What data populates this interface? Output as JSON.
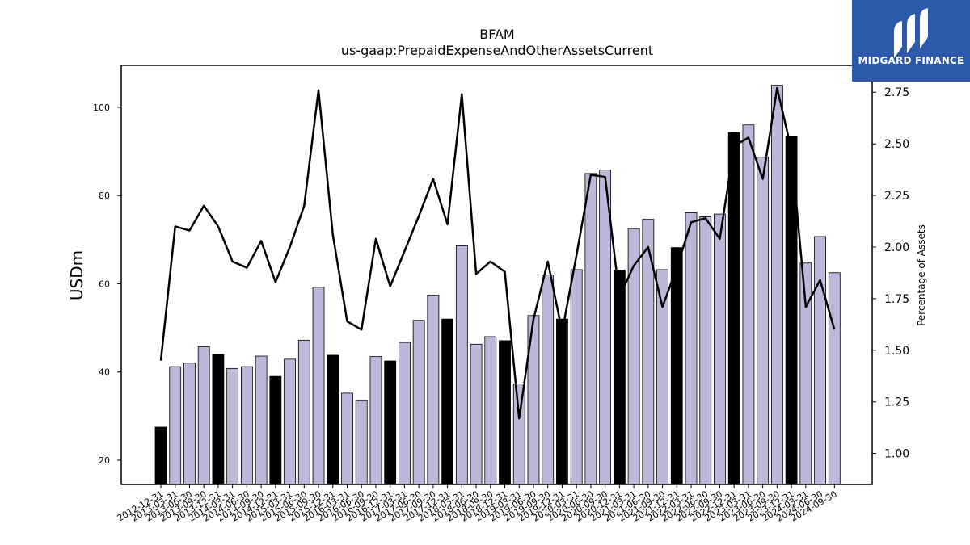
{
  "chart_data": {
    "type": "bar",
    "title": "BFAM",
    "subtitle": "us-gaap:PrepaidExpenseAndOtherAssetsCurrent",
    "ylabel": "USDm",
    "y2label": "Percentage of Assets",
    "ylim": [
      14.5,
      109.5
    ],
    "y2lim": [
      0.85,
      2.88
    ],
    "yticks": [
      20,
      40,
      60,
      80,
      100
    ],
    "y2ticks": [
      "1.00",
      "1.25",
      "1.50",
      "1.75",
      "2.00",
      "2.25",
      "2.50",
      "2.75"
    ],
    "colors": {
      "q4_bar": "#000000",
      "other_bar": "#bcb8d9",
      "line": "#000000"
    },
    "categories": [
      "2012-12-31",
      "2013-03-31",
      "2013-06-30",
      "2013-09-30",
      "2013-12-31",
      "2014-03-31",
      "2014-06-30",
      "2014-09-30",
      "2014-12-31",
      "2015-03-31",
      "2015-06-30",
      "2015-09-30",
      "2015-12-31",
      "2016-03-31",
      "2016-06-30",
      "2016-09-30",
      "2016-12-31",
      "2017-03-31",
      "2017-06-30",
      "2017-09-30",
      "2017-12-31",
      "2018-03-31",
      "2018-06-30",
      "2018-09-30",
      "2018-12-31",
      "2019-03-31",
      "2019-06-30",
      "2019-09-30",
      "2019-12-31",
      "2020-03-31",
      "2020-06-30",
      "2020-09-30",
      "2020-12-31",
      "2021-03-31",
      "2021-06-30",
      "2021-09-30",
      "2021-12-31",
      "2022-03-31",
      "2022-06-30",
      "2022-09-30",
      "2022-12-31",
      "2023-03-31",
      "2023-06-30",
      "2023-09-30",
      "2023-12-31",
      "2024-03-31",
      "2024-06-30",
      "2024-09-30"
    ],
    "bar_series": {
      "name": "",
      "values": [
        27.5,
        41.2,
        42.0,
        45.7,
        44.0,
        40.8,
        41.2,
        43.6,
        39.0,
        42.9,
        47.2,
        59.2,
        43.8,
        35.2,
        33.5,
        43.5,
        42.5,
        46.7,
        51.7,
        57.4,
        52.0,
        68.6,
        46.3,
        48.0,
        47.1,
        37.3,
        52.8,
        62.0,
        52.0,
        63.2,
        85.0,
        85.8,
        63.1,
        72.5,
        74.6,
        63.2,
        68.2,
        76.1,
        75.2,
        75.8,
        94.3,
        96.0,
        88.7,
        105.0,
        93.5,
        64.7,
        70.7,
        62.5
      ]
    },
    "line_series": {
      "name": "",
      "values": [
        1.45,
        2.1,
        2.08,
        2.2,
        2.1,
        1.93,
        1.9,
        2.03,
        1.83,
        2.0,
        2.2,
        2.76,
        2.06,
        1.64,
        1.6,
        2.04,
        1.81,
        1.98,
        2.15,
        2.33,
        2.11,
        2.74,
        1.87,
        1.93,
        1.88,
        1.17,
        1.65,
        1.93,
        1.59,
        1.96,
        2.35,
        2.34,
        1.76,
        1.91,
        2.0,
        1.71,
        1.9,
        2.12,
        2.14,
        2.04,
        2.49,
        2.53,
        2.33,
        2.77,
        2.47,
        1.71,
        1.84,
        1.6
      ]
    },
    "legend": "none",
    "grid": false
  },
  "logo": {
    "text": "MIDGARD FINANCE"
  }
}
